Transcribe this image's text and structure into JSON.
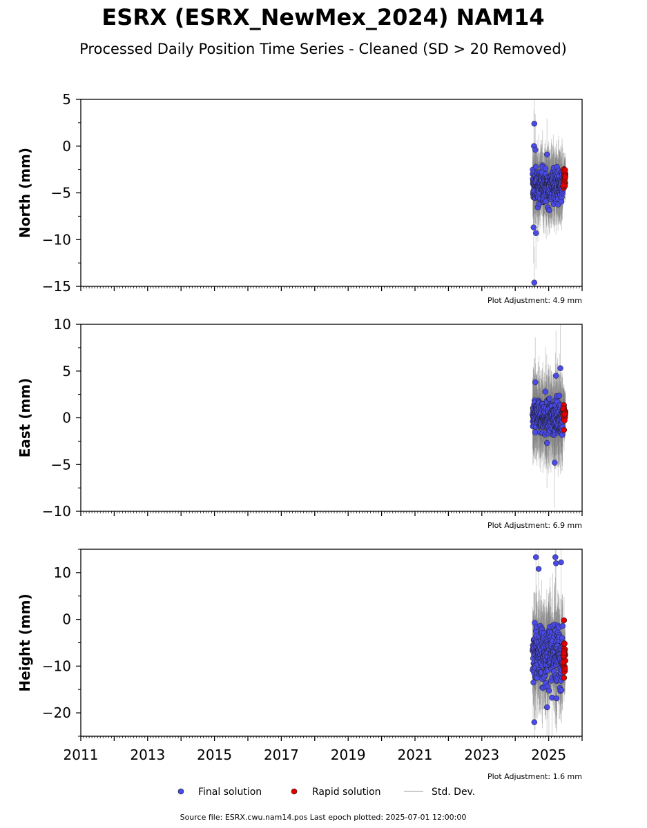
{
  "figure": {
    "title": "ESRX (ESRX_NewMex_2024) NAM14",
    "subtitle": "Processed Daily Position Time Series - Cleaned (SD > 20 Removed)",
    "footer": "Source file: ESRX.cwu.nam14.pos  Last epoch plotted: 2025-07-01 12:00:00"
  },
  "legend": {
    "final": "Final solution",
    "rapid": "Rapid solution",
    "std": "Std. Dev.",
    "placement": "bottom-center"
  },
  "colors": {
    "final": "#4a4ae6",
    "rapid": "#e00000",
    "std": "#7a7a7a"
  },
  "chart_data": [
    {
      "type": "scatter",
      "ylabel": "North (mm)",
      "ylim": [
        -15,
        5
      ],
      "xlim": [
        2011,
        2026
      ],
      "yticks": [
        5,
        0,
        -5,
        -10,
        -15
      ],
      "adjustment": "Plot Adjustment: 4.9 mm",
      "final": {
        "x_range": [
          2024.52,
          2025.42
        ],
        "center": -4.2,
        "spread": 1.3,
        "extremes": [
          [
            2024.57,
            2.4
          ],
          [
            2024.57,
            -14.6
          ],
          [
            2024.62,
            -9.3
          ],
          [
            2024.55,
            -8.7
          ],
          [
            2024.56,
            0.0
          ],
          [
            2024.6,
            -0.4
          ],
          [
            2024.95,
            -0.9
          ]
        ],
        "count": 300,
        "sd": 1.6
      },
      "rapid": {
        "x_range": [
          2025.43,
          2025.5
        ],
        "center": -3.5,
        "spread": 0.9,
        "count": 30
      }
    },
    {
      "type": "scatter",
      "ylabel": "East (mm)",
      "ylim": [
        -10,
        10
      ],
      "xlim": [
        2011,
        2026
      ],
      "yticks": [
        10,
        5,
        0,
        -5,
        -10
      ],
      "adjustment": "Plot Adjustment: 6.9 mm",
      "final": {
        "x_range": [
          2024.52,
          2025.42
        ],
        "center": 0.0,
        "spread": 1.2,
        "extremes": [
          [
            2025.35,
            5.3
          ],
          [
            2025.22,
            4.5
          ],
          [
            2024.6,
            3.8
          ],
          [
            2025.18,
            -4.8
          ],
          [
            2024.95,
            -2.7
          ],
          [
            2024.9,
            2.8
          ]
        ],
        "count": 300,
        "sd": 2.0
      },
      "rapid": {
        "x_range": [
          2025.43,
          2025.5
        ],
        "center": 0.5,
        "spread": 0.6,
        "count": 30,
        "extremes": [
          [
            2025.46,
            -1.3
          ]
        ]
      }
    },
    {
      "type": "scatter",
      "ylabel": "Height (mm)",
      "ylim": [
        -25,
        15
      ],
      "xlim": [
        2011,
        2026
      ],
      "yticks": [
        10,
        0,
        -10,
        -20
      ],
      "adjustment": "Plot Adjustment: 1.6 mm",
      "final": {
        "x_range": [
          2024.52,
          2025.42
        ],
        "center": -7.5,
        "spread": 4.5,
        "extremes": [
          [
            2024.62,
            13.3
          ],
          [
            2025.2,
            13.3
          ],
          [
            2024.7,
            10.8
          ],
          [
            2025.37,
            12.2
          ],
          [
            2024.57,
            -22.0
          ],
          [
            2024.95,
            -18.8
          ],
          [
            2025.22,
            12.0
          ]
        ],
        "count": 300,
        "sd": 4.5
      },
      "rapid": {
        "x_range": [
          2025.43,
          2025.5
        ],
        "center": -7.5,
        "spread": 2.5,
        "count": 30,
        "extremes": [
          [
            2025.46,
            -0.2
          ],
          [
            2025.46,
            -12.5
          ]
        ]
      }
    }
  ],
  "xticks": [
    "2011",
    "2013",
    "2015",
    "2017",
    "2019",
    "2021",
    "2023",
    "2025"
  ]
}
